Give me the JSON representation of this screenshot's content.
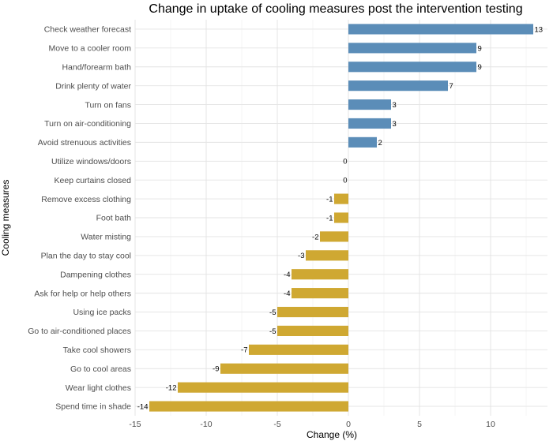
{
  "chart_data": {
    "type": "bar",
    "orientation": "horizontal",
    "title": "Change in uptake of cooling measures post the intervention testing",
    "xlabel": "Change (%)",
    "ylabel": "Cooling measures",
    "xlim": [
      -15,
      14
    ],
    "xticks": [
      -15,
      -10,
      -5,
      0,
      5,
      10
    ],
    "grid": true,
    "categories": [
      "Check weather forecast",
      "Move to a cooler room",
      "Hand/forearm bath",
      "Drink plenty of water",
      "Turn on fans",
      "Turn on air-conditioning",
      "Avoid strenuous activities",
      "Utilize windows/doors",
      "Keep curtains closed",
      "Remove excess clothing",
      "Foot bath",
      "Water misting",
      "Plan the day to stay cool",
      "Dampening clothes",
      "Ask for help or help others",
      "Using ice packs",
      "Go to air-conditioned places",
      "Take cool showers",
      "Go to cool areas",
      "Wear light clothes",
      "Spend time in shade"
    ],
    "values": [
      13,
      9,
      9,
      7,
      3,
      3,
      2,
      0,
      0,
      -1,
      -1,
      -2,
      -3,
      -4,
      -4,
      -5,
      -5,
      -7,
      -9,
      -12,
      -14
    ],
    "colors": {
      "positive": "#5b8db8",
      "negative": "#cfa832"
    }
  }
}
